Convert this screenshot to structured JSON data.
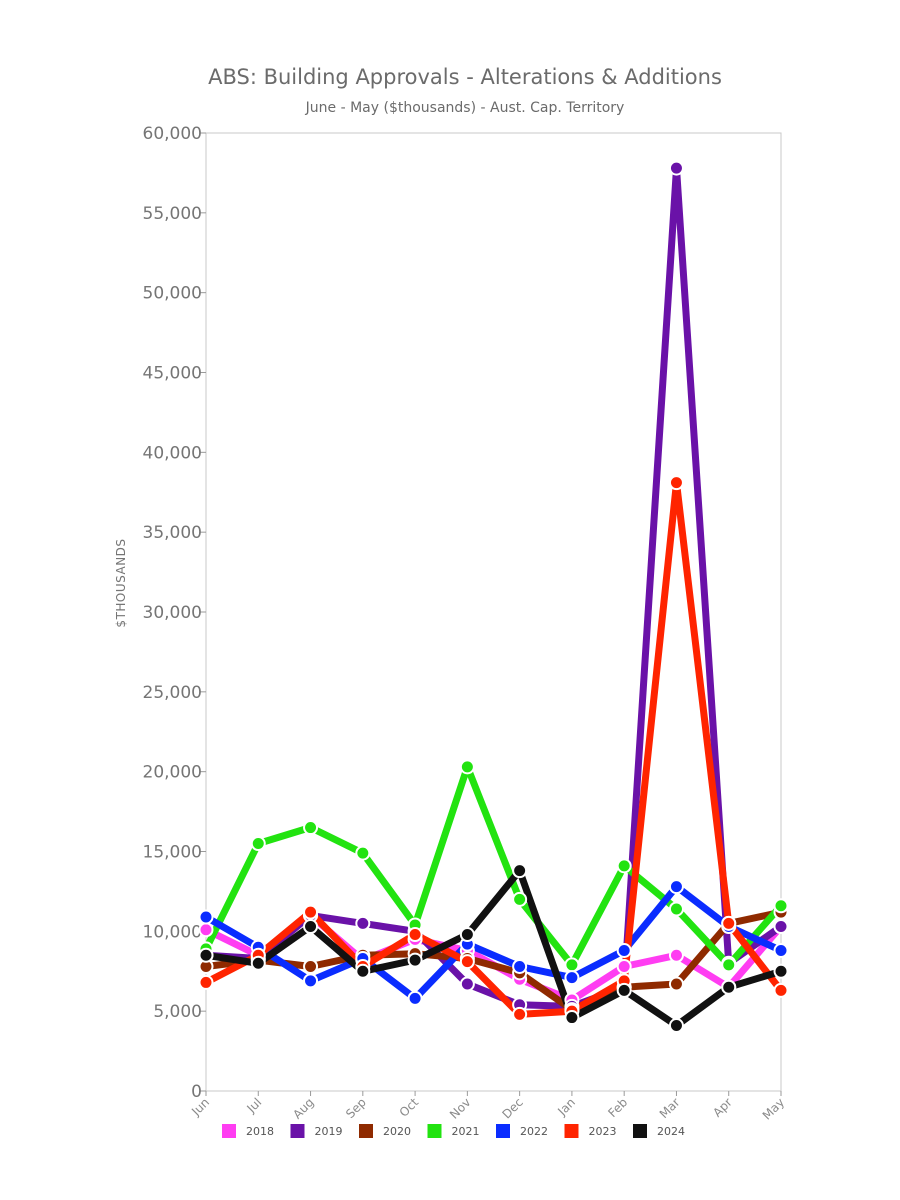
{
  "chart_data": {
    "type": "line",
    "title": "ABS: Building Approvals - Alterations & Additions",
    "subtitle": "June - May ($thousands) - Aust. Cap. Territory",
    "xlabel": "",
    "ylabel": "$THOUSANDS",
    "categories": [
      "Jun",
      "Jul",
      "Aug",
      "Sep",
      "Oct",
      "Nov",
      "Dec",
      "Jan",
      "Feb",
      "Mar",
      "Apr",
      "May"
    ],
    "ylim": [
      0,
      60000
    ],
    "yticks": [
      0,
      5000,
      10000,
      15000,
      20000,
      25000,
      30000,
      35000,
      40000,
      45000,
      50000,
      55000,
      60000
    ],
    "ytick_labels": [
      "0",
      "5,000",
      "10,000",
      "15,000",
      "20,000",
      "25,000",
      "30,000",
      "35,000",
      "40,000",
      "45,000",
      "50,000",
      "55,000",
      "60,000"
    ],
    "grid": false,
    "legend_position": "bottom",
    "series": [
      {
        "name": "2018",
        "color": "#ff3df2",
        "values": [
          10100,
          8500,
          11000,
          8200,
          9500,
          8800,
          7000,
          5700,
          7800,
          8500,
          6500,
          10300
        ]
      },
      {
        "name": "2019",
        "color": "#6a12a8",
        "values": [
          8500,
          8300,
          11000,
          10500,
          10000,
          6700,
          5400,
          5300,
          6500,
          57800,
          8000,
          10300
        ]
      },
      {
        "name": "2020",
        "color": "#8f2a00",
        "values": [
          7800,
          8200,
          7800,
          8500,
          8600,
          8300,
          7400,
          5100,
          6500,
          6700,
          10500,
          11200
        ]
      },
      {
        "name": "2021",
        "color": "#22e310",
        "values": [
          8900,
          15500,
          16500,
          14900,
          10400,
          20300,
          12000,
          7900,
          14100,
          11400,
          7900,
          11600
        ]
      },
      {
        "name": "2022",
        "color": "#0a2cff",
        "values": [
          10900,
          9000,
          6900,
          8300,
          5800,
          9200,
          7800,
          7100,
          8800,
          12800,
          10300,
          8800
        ]
      },
      {
        "name": "2023",
        "color": "#ff2400",
        "values": [
          6800,
          8500,
          11200,
          7800,
          9800,
          8100,
          4800,
          5000,
          6900,
          38100,
          10500,
          6300
        ]
      },
      {
        "name": "2024",
        "color": "#111111",
        "values": [
          8500,
          8000,
          10300,
          7500,
          8200,
          9800,
          13800,
          4600,
          6300,
          4100,
          6500,
          7500
        ]
      }
    ]
  }
}
